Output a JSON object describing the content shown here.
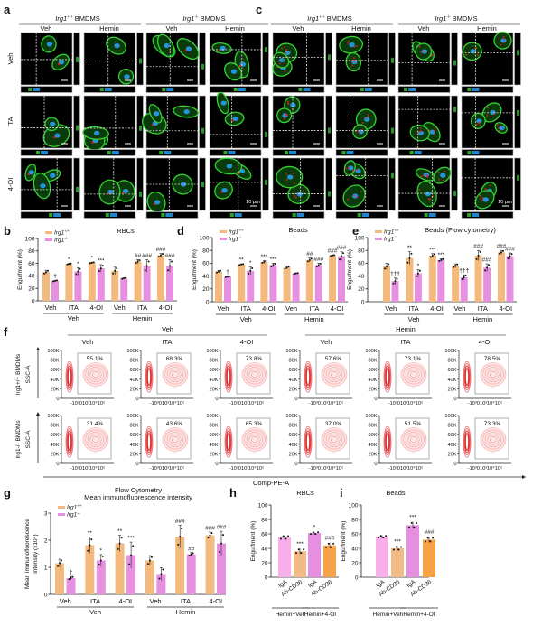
{
  "panel_labels": {
    "a": "a",
    "b": "b",
    "c": "c",
    "d": "d",
    "e": "e",
    "f": "f",
    "g": "g",
    "h": "h",
    "i": "i"
  },
  "genotypes": {
    "wt": {
      "gene": "Irg1",
      "sup": "+/+",
      "suffix": " BMDMS",
      "suffix_f": " BMDMs"
    },
    "ko": {
      "gene": "Irg1",
      "sup": "-/-",
      "suffix": " BMDMS",
      "suffix_f": " BMDMs"
    }
  },
  "colors": {
    "wt": "#f4b97c",
    "ko": "#e890e0",
    "h_bars": [
      "#f7aee9",
      "#f2bb86",
      "#e68ee0",
      "#f7a246"
    ],
    "iba1": "#35d335",
    "stain": "#e02020",
    "dapi": "#2aa5ff"
  },
  "microscopy": {
    "columns": [
      "Veh",
      "Hemin",
      "Veh",
      "Hemin"
    ],
    "rows": [
      "Veh",
      "ITA",
      "4-OI"
    ],
    "a_stain": {
      "iba": "Iba-1",
      "red": "PKH26",
      "dapi": "/DAPI"
    },
    "c_stain": {
      "iba": "Iba-1",
      "red": "Beads",
      "dapi": "/DAPI"
    },
    "scale_bar": "10 μm"
  },
  "bar_charts": [
    {
      "id": "b",
      "title": "RBCs",
      "ylabel": "Engulfment (%)",
      "ylim": [
        0,
        100
      ],
      "yticks": [
        0,
        20,
        40,
        60,
        80,
        100
      ],
      "categories": [
        "Veh",
        "ITA",
        "4-OI",
        "Veh",
        "ITA",
        "4-OI"
      ],
      "groups": [
        "Veh",
        "Hemin"
      ],
      "legend": [
        "Irg1+/+",
        "Irg1-/-"
      ],
      "series": [
        {
          "values": [
            46,
            59,
            61,
            48,
            63,
            73
          ],
          "err": [
            3,
            1,
            1,
            6,
            3,
            3
          ],
          "annot": [
            "",
            "*",
            "*",
            "",
            "##",
            "###"
          ]
        },
        {
          "values": [
            32,
            47,
            52,
            36,
            56,
            56
          ],
          "err": [
            1,
            6,
            6,
            1,
            10,
            10
          ],
          "annot": [
            "†",
            "*",
            "***",
            "",
            "###",
            "###"
          ]
        }
      ]
    },
    {
      "id": "d",
      "title": "Beads",
      "ylabel": "Engulfment (%)",
      "ylim": [
        0,
        100
      ],
      "yticks": [
        0,
        20,
        40,
        60,
        80,
        100
      ],
      "categories": [
        "Veh",
        "ITA",
        "4-OI",
        "Veh",
        "ITA",
        "4-OI"
      ],
      "groups": [
        "Veh",
        "Hemin"
      ],
      "legend": [
        "Irg1+/+",
        "Irg1-/-"
      ],
      "series": [
        {
          "values": [
            47,
            58,
            62,
            53,
            65,
            72
          ],
          "err": [
            2,
            1,
            2,
            2,
            3,
            1
          ],
          "annot": [
            "",
            "**",
            "***",
            "",
            "##",
            "###"
          ]
        },
        {
          "values": [
            39,
            48,
            57,
            44,
            57,
            71
          ],
          "err": [
            1,
            6,
            3,
            1,
            3,
            7
          ],
          "annot": [
            "†",
            "*",
            "***",
            "",
            "###",
            "###"
          ]
        }
      ]
    },
    {
      "id": "e",
      "title": "Beads (Flow cytometry)",
      "ylabel": "Engulfment (%)",
      "ylim": [
        0,
        100
      ],
      "yticks": [
        0,
        20,
        40,
        60,
        80,
        100
      ],
      "categories": [
        "Veh",
        "ITA",
        "4-OI",
        "Veh",
        "ITA",
        "4-OI"
      ],
      "groups": [
        "Veh",
        "Hemin"
      ],
      "legend": [
        "Irg1+/+",
        "Irg1-/-"
      ],
      "series": [
        {
          "values": [
            55,
            68,
            72,
            56,
            72,
            77
          ],
          "err": [
            5,
            10,
            3,
            3,
            8,
            3
          ],
          "annot": [
            "",
            "**",
            "***",
            "",
            "###",
            "###"
          ]
        },
        {
          "values": [
            32,
            44,
            65,
            38,
            53,
            71
          ],
          "err": [
            5,
            6,
            2,
            4,
            6,
            5
          ],
          "annot": [
            "†††",
            "*",
            "***",
            "†††",
            "###",
            "###"
          ]
        }
      ]
    },
    {
      "id": "g",
      "title": "Flow Cytometry",
      "subtitle": "Mean immunofluorescence intensity",
      "ylabel": "Mean immunofluorescence",
      "ylabel2": "intensity (x10⁴)",
      "ylim": [
        0,
        3
      ],
      "yticks": [
        0,
        1,
        2,
        3
      ],
      "categories": [
        "Veh",
        "ITA",
        "4-OI",
        "Veh",
        "ITA",
        "4-OI"
      ],
      "groups": [
        "Veh",
        "Hemin"
      ],
      "legend": [
        "Irg1+/+",
        "Irg1-/-"
      ],
      "series": [
        {
          "values": [
            1.15,
            1.82,
            1.88,
            1.25,
            2.13,
            2.18
          ],
          "err": [
            0.15,
            0.3,
            0.3,
            0.18,
            0.42,
            0.12
          ],
          "annot": [
            "",
            "**",
            "**",
            "",
            "###",
            "###"
          ]
        },
        {
          "values": [
            0.6,
            1.25,
            1.45,
            0.75,
            1.48,
            1.88
          ],
          "err": [
            0.06,
            0.22,
            0.48,
            0.24,
            0.06,
            0.45
          ],
          "annot": [
            "†",
            "*",
            "***",
            "",
            "##",
            "###"
          ]
        }
      ]
    }
  ],
  "single_charts": [
    {
      "id": "h",
      "title": "RBCs",
      "ylabel": "Engulfment (%)",
      "ylim": [
        0,
        100
      ],
      "yticks": [
        0,
        20,
        40,
        60,
        80,
        100
      ],
      "categories": [
        "IgA",
        "Ab-CD36",
        "IgA",
        "Ab-CD36"
      ],
      "groups": [
        "Hemin+Veh",
        "Hemin+4-OI"
      ],
      "values": [
        55,
        36,
        61,
        44
      ],
      "err": [
        3,
        4,
        2,
        4
      ],
      "annot": [
        "",
        "***",
        "*",
        "###"
      ]
    },
    {
      "id": "i",
      "title": "Beads",
      "ylabel": "Engulfment (%)",
      "ylim": [
        0,
        100
      ],
      "yticks": [
        0,
        20,
        40,
        60,
        80,
        100
      ],
      "categories": [
        "IgA",
        "Ab-CD36",
        "IgA",
        "Ab-CD36"
      ],
      "groups": [
        "Hemin+Veh",
        "Hemin+4-OI"
      ],
      "values": [
        56,
        40,
        72,
        52
      ],
      "err": [
        2,
        3,
        5,
        4
      ],
      "annot": [
        "",
        "***",
        "***",
        "###"
      ]
    }
  ],
  "flow": {
    "groups": [
      "Veh",
      "Hemin"
    ],
    "columns": [
      "Veh",
      "ITA",
      "4-OI",
      "Veh",
      "ITA",
      "4-OI"
    ],
    "row_labels": [
      "Irg1+/+ BMDMs",
      "Irg1-/- BMDMs"
    ],
    "yaxis": "SSC-A",
    "xaxis": "Comp-PE-A",
    "yticks": [
      "0",
      "20K",
      "40K",
      "60K",
      "80K",
      "100K"
    ],
    "xticks": [
      "-10³",
      "0",
      "10³",
      "10⁴",
      "10⁵"
    ],
    "percent": [
      [
        "55.1%",
        "68.3%",
        "73.8%",
        "57.6%",
        "73.1%",
        "78.5%"
      ],
      [
        "31.4%",
        "43.6%",
        "65.3%",
        "37.0%",
        "51.5%",
        "73.3%"
      ]
    ]
  }
}
